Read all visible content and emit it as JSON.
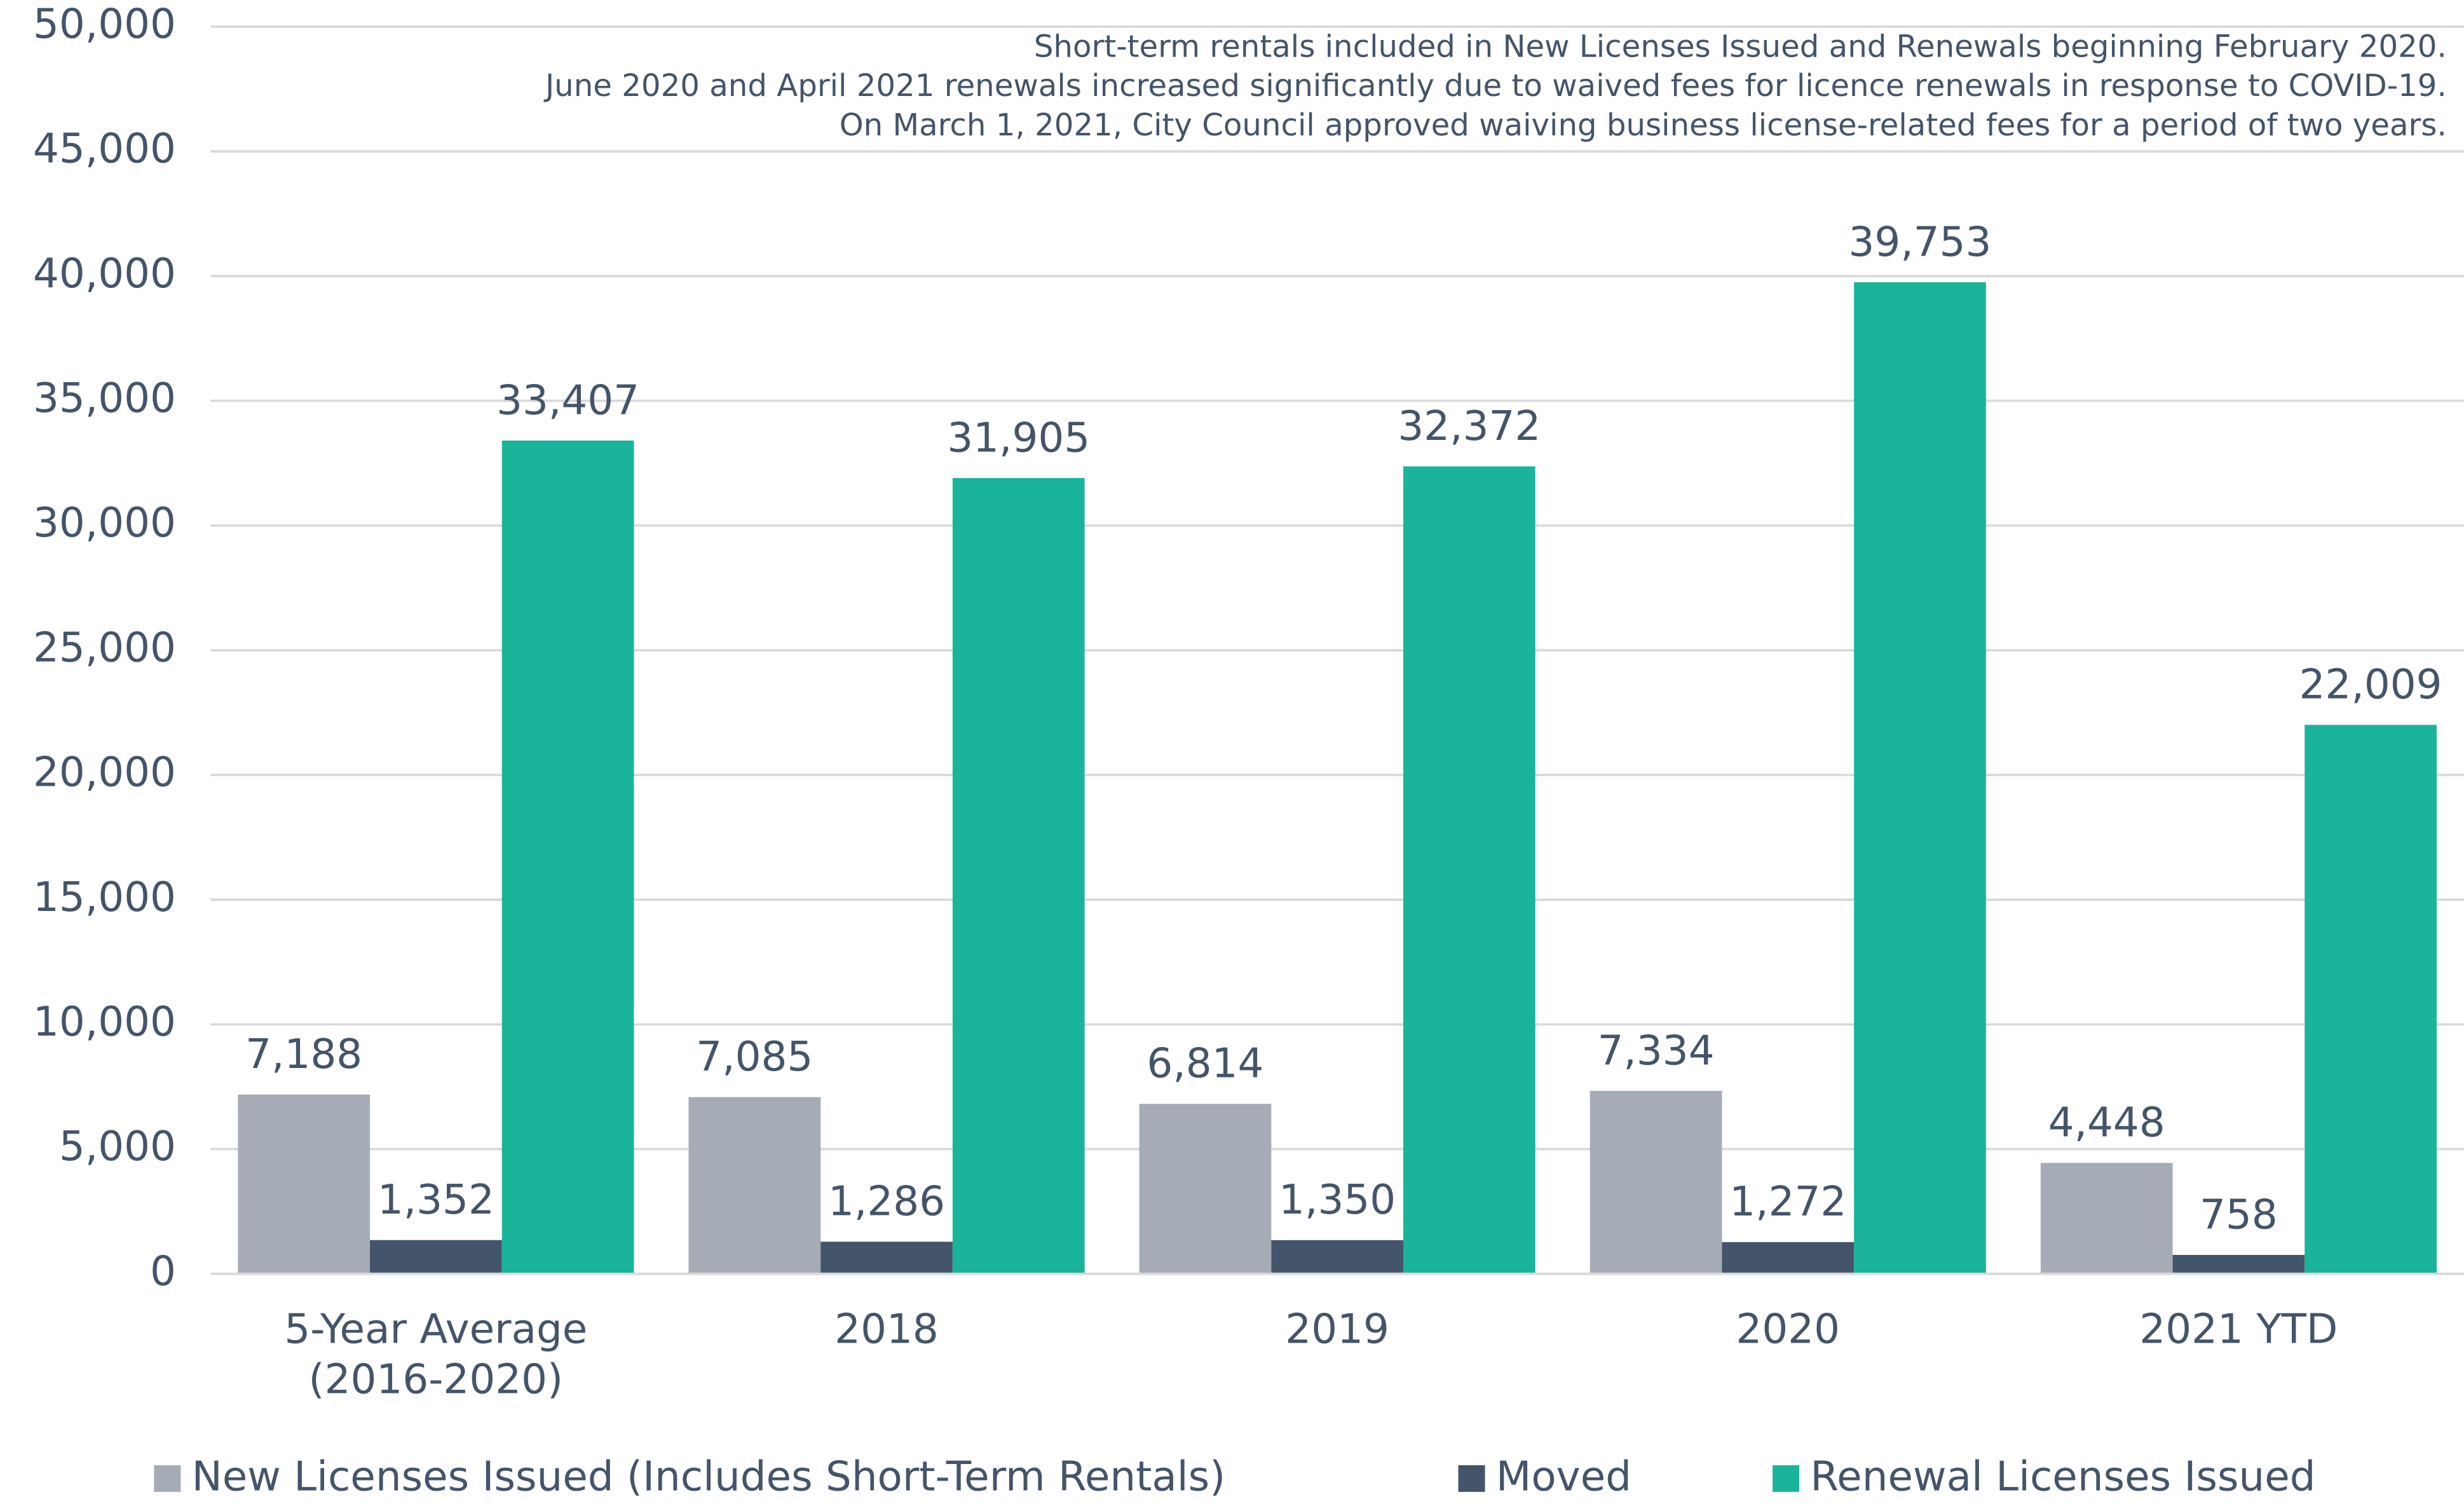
{
  "chart_data": {
    "type": "bar",
    "notes": [
      "Short-term rentals included in New Licenses Issued and Renewals beginning February 2020.",
      "June 2020 and April 2021 renewals increased significantly due to waived fees for licence renewals in response to COVID-19.",
      "On March 1, 2021, City Council approved waiving business license-related fees for a period of two years."
    ],
    "categories": [
      "5-Year Average (2016-2020)",
      "2018",
      "2019",
      "2020",
      "2021 YTD"
    ],
    "series": [
      {
        "name": "New Licenses Issued (Includes Short-Term Rentals)",
        "color": "#a5acb6",
        "values": [
          7188,
          7085,
          6814,
          7334,
          4448
        ],
        "value_labels": [
          "7,188",
          "7,085",
          "6,814",
          "7,334",
          "4,448"
        ]
      },
      {
        "name": "Moved",
        "color": "#44546a",
        "values": [
          1352,
          1286,
          1350,
          1272,
          758
        ],
        "value_labels": [
          "1,352",
          "1,286",
          "1,350",
          "1,272",
          "758"
        ]
      },
      {
        "name": "Renewal Licenses Issued",
        "color": "#1ab49a",
        "values": [
          33407,
          31905,
          32372,
          39753,
          22009
        ],
        "value_labels": [
          "33,407",
          "31,905",
          "32,372",
          "39,753",
          "22,009"
        ]
      }
    ],
    "ylim": [
      0,
      50000
    ],
    "yticks": [
      0,
      {
        "value": 5000,
        "label": "5,000"
      },
      {
        "value": 10000,
        "label": "10,000"
      },
      {
        "value": 15000,
        "label": "15,000"
      },
      {
        "value": 20000,
        "label": "20,000"
      },
      {
        "value": 25000,
        "label": "25,000"
      },
      {
        "value": 30000,
        "label": "30,000"
      },
      {
        "value": 35000,
        "label": "35,000"
      },
      {
        "value": 40000,
        "label": "40,000"
      },
      {
        "value": 45000,
        "label": "45,000"
      },
      {
        "value": 50000,
        "label": "50,000"
      }
    ],
    "grid": true,
    "legend": "bottom"
  }
}
